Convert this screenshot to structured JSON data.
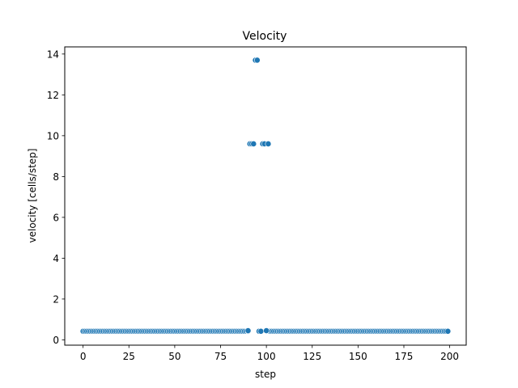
{
  "chart_data": {
    "type": "scatter",
    "title": "Velocity",
    "xlabel": "step",
    "ylabel": "velocity [cells/step]",
    "xlim": [
      -10,
      209
    ],
    "ylim": [
      -0.26,
      14.35
    ],
    "xticks": [
      0,
      25,
      50,
      75,
      100,
      125,
      150,
      175,
      200
    ],
    "yticks": [
      0,
      2,
      4,
      6,
      8,
      10,
      12,
      14
    ],
    "grid": false,
    "marker_color": "#1f77b4",
    "series": [
      {
        "baseline": 0.42,
        "x_start": 0,
        "x_end": 199,
        "gap_x": [
          91,
          92,
          93,
          94,
          95,
          96,
          97,
          98,
          99,
          100,
          101
        ],
        "points": [
          {
            "x": 90,
            "y": 0.45
          },
          {
            "x": 91,
            "y": 9.6
          },
          {
            "x": 92,
            "y": 9.6
          },
          {
            "x": 93,
            "y": 9.6
          },
          {
            "x": 94,
            "y": 13.7
          },
          {
            "x": 95,
            "y": 13.7
          },
          {
            "x": 96,
            "y": 0.42
          },
          {
            "x": 97,
            "y": 0.42
          },
          {
            "x": 98,
            "y": 9.6
          },
          {
            "x": 99,
            "y": 9.6
          },
          {
            "x": 100,
            "y": 0.45
          },
          {
            "x": 101,
            "y": 9.6
          }
        ]
      }
    ]
  }
}
